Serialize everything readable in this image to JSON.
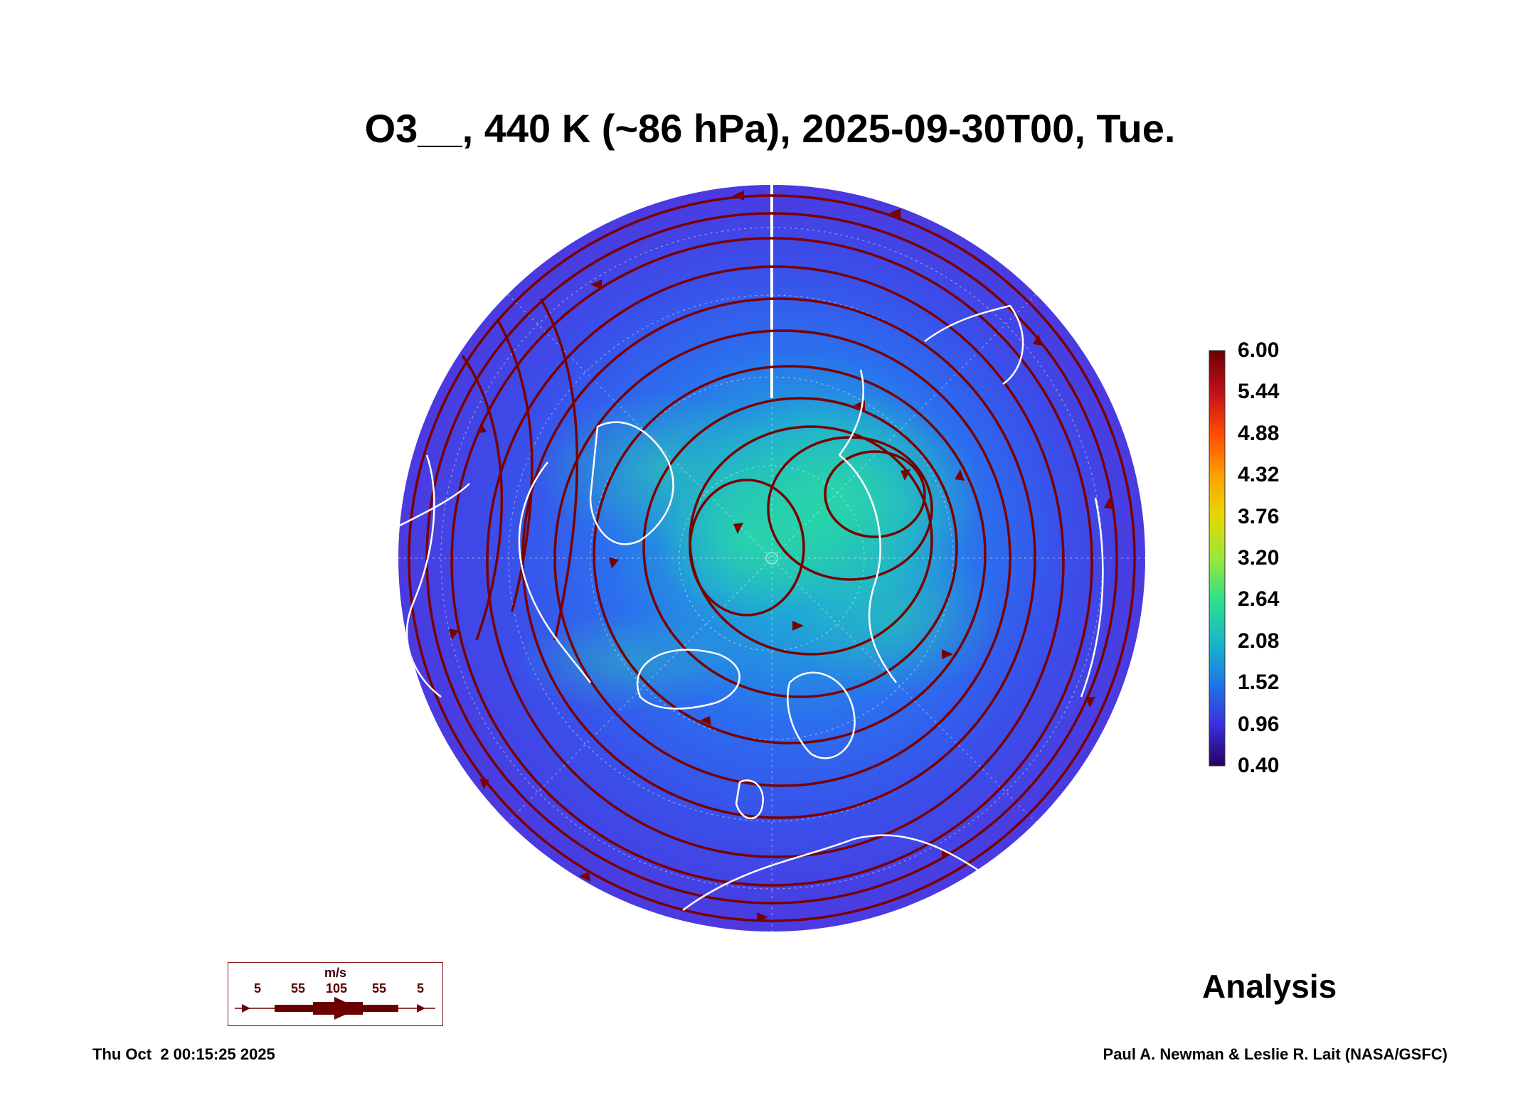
{
  "title": "O3__, 440 K (~86 hPa), 2025-09-30T00, Tue.",
  "colorbar": {
    "ticks": [
      "6.00",
      "5.44",
      "4.88",
      "4.32",
      "3.76",
      "3.20",
      "2.64",
      "2.08",
      "1.52",
      "0.96",
      "0.40"
    ],
    "colors": [
      "#8b0000",
      "#d61c00",
      "#ff6a00",
      "#ffb400",
      "#d8e000",
      "#7ee64a",
      "#22e08a",
      "#15b7c9",
      "#1e78e6",
      "#3b38e0",
      "#300070"
    ]
  },
  "legend": {
    "unit": "m/s",
    "values": [
      "5",
      "55",
      "105",
      "55",
      "5"
    ]
  },
  "label": "Analysis",
  "footer_left": "Thu Oct  2 00:15:25 2025",
  "footer_right": "Paul A. Newman & Leslie R. Lait (NASA/GSFC)",
  "map": {
    "projection": "north polar orthographic",
    "field_colors": {
      "background": "#3f3fe6",
      "mid": "#2f6ef0",
      "high": "#22b8c8"
    },
    "streamline_color": "#7a0000",
    "coastline_color": "#ffffff"
  }
}
